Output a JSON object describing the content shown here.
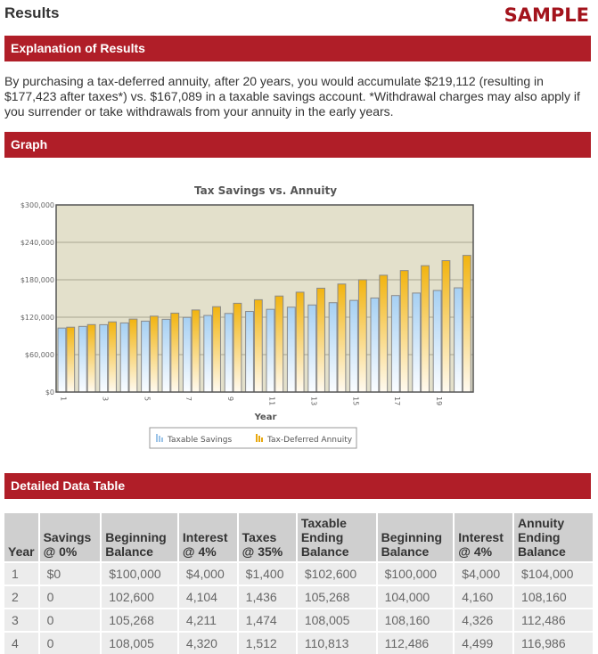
{
  "header": {
    "title": "Results",
    "watermark": "SAMPLE"
  },
  "sections": {
    "explanation": "Explanation of Results",
    "graph": "Graph",
    "table": "Detailed Data Table"
  },
  "explanation_text": "By purchasing a tax-deferred annuity, after 20 years, you would accumulate $219,112 (resulting in $177,423 after taxes*) vs. $167,089 in a taxable savings account. *Withdrawal charges may also apply if you surrender or take withdrawals from your annuity in the early years.",
  "colors": {
    "brand": "#b01e28",
    "taxable": "#a9d3f5",
    "annuity": "#f3b61a",
    "plot_bg": "#e3e0cb"
  },
  "chart_data": {
    "type": "bar",
    "title": "Tax Savings vs. Annuity",
    "xlabel": "Year",
    "ylabel": "",
    "ylim": [
      0,
      300000
    ],
    "yticks": [
      "$0",
      "$60,000",
      "$120,000",
      "$180,000",
      "$240,000",
      "$300,000"
    ],
    "categories": [
      1,
      2,
      3,
      4,
      5,
      6,
      7,
      8,
      9,
      10,
      11,
      12,
      13,
      14,
      15,
      16,
      17,
      18,
      19,
      20
    ],
    "xtick_labels": [
      "1",
      "3",
      "5",
      "7",
      "9",
      "11",
      "13",
      "15",
      "17",
      "19"
    ],
    "grid": true,
    "legend": "bottom",
    "series": [
      {
        "name": "Taxable Savings",
        "values": [
          102600,
          105268,
          108005,
          110813,
          113694,
          116650,
          119683,
          122795,
          125988,
          129264,
          132625,
          136073,
          139611,
          143241,
          146965,
          150786,
          154706,
          158728,
          162855,
          167089
        ]
      },
      {
        "name": "Tax-Deferred Annuity",
        "values": [
          104000,
          108160,
          112486,
          116986,
          121665,
          126532,
          131593,
          136857,
          142331,
          148024,
          153945,
          160103,
          166507,
          173168,
          180094,
          187298,
          194790,
          202582,
          210685,
          219112
        ]
      }
    ]
  },
  "table": {
    "headers": [
      "Year",
      "Savings @ 0%",
      "Beginning Balance",
      "Interest @ 4%",
      "Taxes @ 35%",
      "Taxable Ending Balance",
      "Beginning Balance",
      "Interest @ 4%",
      "Annuity Ending Balance"
    ],
    "rows": [
      [
        "1",
        "$0",
        "$100,000",
        "$4,000",
        "$1,400",
        "$102,600",
        "$100,000",
        "$4,000",
        "$104,000"
      ],
      [
        "2",
        "0",
        "102,600",
        "4,104",
        "1,436",
        "105,268",
        "104,000",
        "4,160",
        "108,160"
      ],
      [
        "3",
        "0",
        "105,268",
        "4,211",
        "1,474",
        "108,005",
        "108,160",
        "4,326",
        "112,486"
      ],
      [
        "4",
        "0",
        "108,005",
        "4,320",
        "1,512",
        "110,813",
        "112,486",
        "4,499",
        "116,986"
      ]
    ]
  }
}
